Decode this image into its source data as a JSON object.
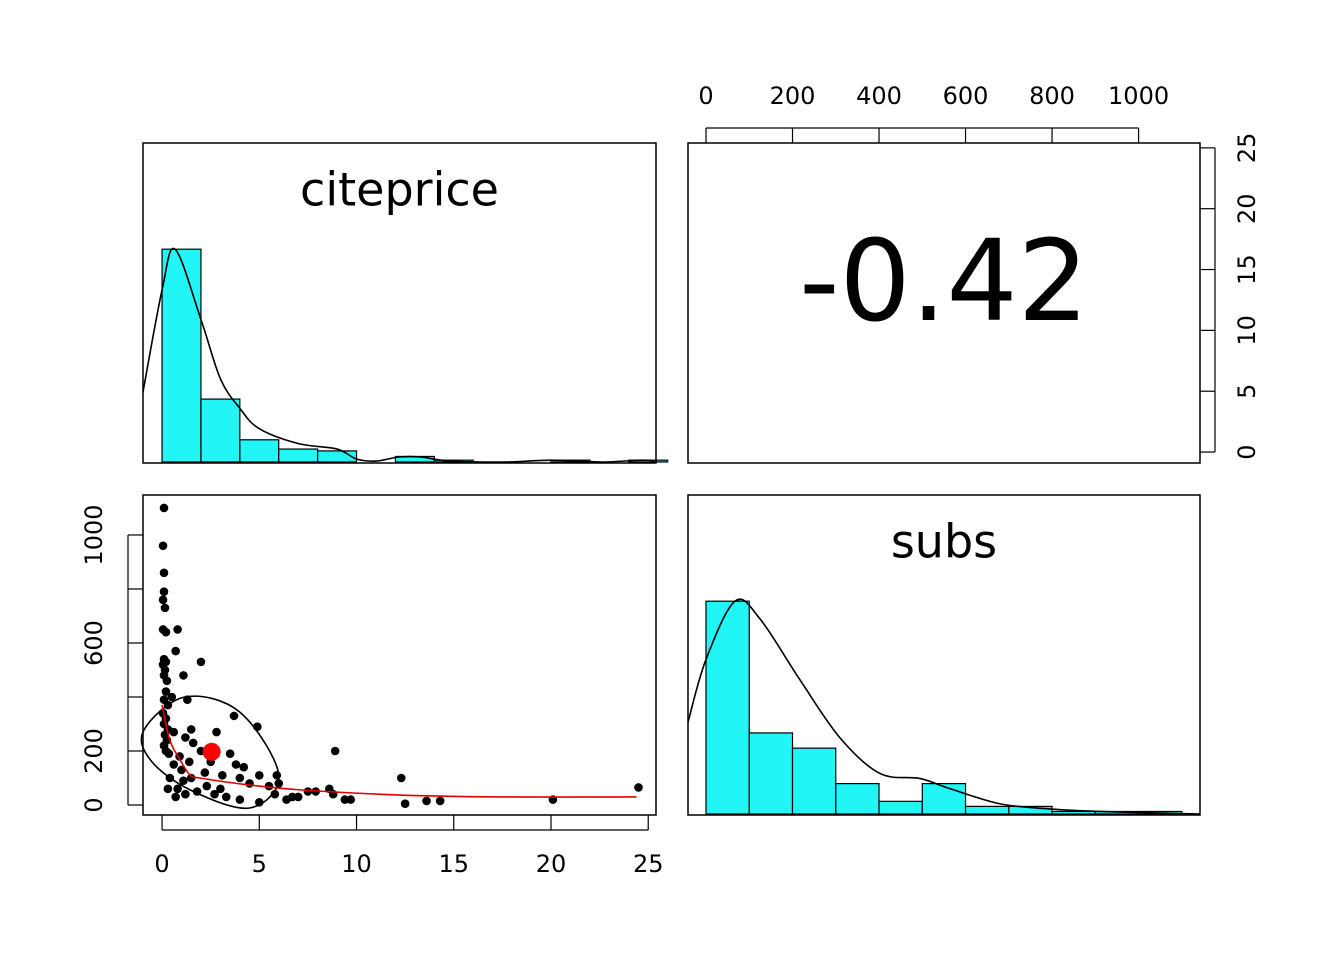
{
  "chart_data": [
    {
      "type": "histogram",
      "title": "citeprice",
      "bins": [
        0,
        2,
        4,
        6,
        8,
        10,
        12,
        14,
        16,
        18,
        20,
        22,
        24,
        26
      ],
      "values": [
        115,
        34,
        12,
        7,
        6,
        0,
        3,
        1,
        0,
        0,
        1,
        0,
        1
      ],
      "color": "#22f5f5",
      "density": {
        "x": [
          -1,
          0,
          0.67,
          2,
          3,
          4,
          5,
          7,
          9,
          10,
          11,
          12.2,
          13.3,
          14.8,
          17.7,
          20,
          22.6,
          24.6,
          25.4
        ],
        "values": [
          36.7,
          93,
          115,
          77,
          45,
          29,
          18,
          10,
          7,
          1.6,
          0.5,
          2.7,
          2.7,
          0.5,
          0,
          1,
          0,
          1,
          0.5
        ]
      },
      "xlim": [
        -0.98,
        25.4
      ]
    },
    {
      "type": "correlation",
      "value": -0.42,
      "xlim": [
        -41.6,
        1142
      ],
      "xticks": [
        0,
        200,
        400,
        600,
        800,
        1000
      ],
      "ylim": [
        -0.9,
        25.4
      ],
      "yticks": [
        0,
        5,
        10,
        15,
        20,
        25
      ]
    },
    {
      "type": "scatter",
      "x": [
        0.1,
        0.05,
        0.1,
        0.1,
        0.05,
        0.15,
        0.05,
        0.2,
        0.1,
        0.2,
        0.05,
        0.15,
        0.1,
        0.25,
        0.2,
        0.1,
        0.3,
        0.05,
        0.2,
        0.1,
        0.3,
        0.15,
        0.25,
        0.1,
        0.2,
        0.35,
        0.8,
        0.7,
        2,
        1.1,
        0.5,
        1.3,
        3.7,
        4.9,
        1.5,
        2.8,
        0.6,
        1.2,
        1.6,
        2.0,
        2.5,
        3.5,
        3.8,
        4.2,
        3.1,
        4.0,
        5,
        5.9,
        6,
        4.5,
        5.5,
        2.3,
        1,
        1.4,
        0.9,
        0.6,
        0.4,
        0.8,
        1.2,
        1.8,
        2.7,
        3.3,
        4,
        5,
        5.8,
        6.7,
        7.5,
        7.9,
        8.6,
        8.8,
        8.9,
        9.4,
        9.7,
        12.3,
        12.5,
        13.6,
        14.3,
        20.1,
        24.5,
        0.3,
        1.5,
        2.2,
        3,
        1.1,
        0.7,
        6.4,
        7
      ],
      "values": [
        1100,
        960,
        860,
        790,
        760,
        730,
        650,
        640,
        540,
        530,
        520,
        500,
        480,
        460,
        420,
        390,
        370,
        340,
        320,
        300,
        280,
        260,
        240,
        220,
        200,
        190,
        650,
        570,
        530,
        480,
        400,
        390,
        330,
        290,
        280,
        270,
        270,
        250,
        230,
        200,
        160,
        190,
        150,
        140,
        110,
        100,
        110,
        110,
        80,
        80,
        70,
        70,
        130,
        160,
        180,
        150,
        100,
        60,
        40,
        50,
        40,
        30,
        20,
        10,
        40,
        30,
        50,
        50,
        60,
        40,
        200,
        20,
        20,
        100,
        5,
        15,
        15,
        20,
        65,
        60,
        100,
        120,
        60,
        90,
        30,
        20,
        30
      ],
      "mean": {
        "x": 2.55,
        "value": 197
      },
      "ellipse": {
        "x": [
          -0.93,
          1.18,
          4,
          6,
          4.5,
          1.44,
          -0.6
        ],
        "values": [
          278,
          400,
          344,
          111,
          -11,
          56,
          167
        ]
      },
      "smooth": {
        "x": [
          0,
          0.4,
          0.93,
          1.44,
          1.95,
          4.5,
          7.1,
          12.2,
          17.4,
          24.4
        ],
        "values": [
          370,
          240,
          167,
          111,
          100,
          74,
          56,
          37,
          30,
          30
        ]
      },
      "xlim": [
        -0.98,
        25.4
      ],
      "xticks": [
        0,
        5,
        10,
        15,
        20,
        25
      ],
      "ylim": [
        -37,
        1148
      ],
      "yticks": [
        0,
        200,
        600,
        1000
      ],
      "yminorticks": [
        400,
        800
      ]
    },
    {
      "type": "histogram",
      "title": "subs",
      "bins": [
        0,
        100,
        200,
        300,
        400,
        500,
        600,
        700,
        800,
        900,
        1000,
        1100
      ],
      "values": [
        84,
        32,
        26,
        12,
        5,
        12,
        3,
        3,
        1,
        1,
        1
      ],
      "color": "#22f5f5",
      "density": {
        "x": [
          -42,
          0,
          67,
          125,
          217,
          310,
          402,
          495,
          564,
          680,
          795,
          911,
          1142
        ],
        "values": [
          36,
          61,
          84,
          77,
          53,
          30,
          16,
          14,
          10,
          4,
          2,
          1,
          0
        ]
      },
      "xlim": [
        -41.6,
        1142
      ]
    }
  ]
}
